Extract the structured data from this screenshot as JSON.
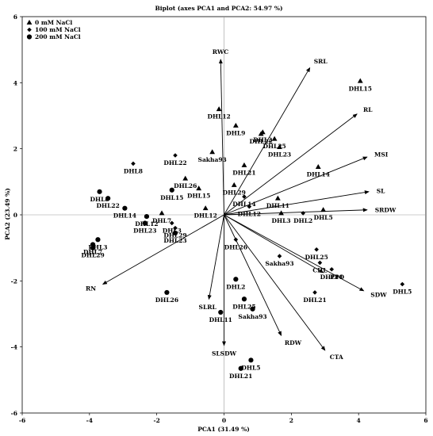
{
  "chart_data": {
    "type": "scatter",
    "title": "Biplot (axes PCA1 and PCA2: 54.97 %)",
    "xlabel": "PCA1 (31.49 %)",
    "ylabel": "PCA2 (23.49 %)",
    "xlim": [
      -6,
      6
    ],
    "ylim": [
      -6,
      6
    ],
    "xticks": [
      "-6",
      "-4",
      "-2",
      "0",
      "2",
      "4",
      "6"
    ],
    "yticks": [
      "6",
      "4",
      "2",
      "0",
      "-2",
      "-4",
      "-6"
    ],
    "legend_position": "top-left",
    "grid": false,
    "series": [
      {
        "name": "0 mM NaCl",
        "marker": "triangle",
        "points": [
          {
            "label": "DHL15",
            "x": 4.05,
            "y": 4.05
          },
          {
            "label": "DHL12",
            "x": -0.15,
            "y": 3.2
          },
          {
            "label": "DHL9",
            "x": 0.35,
            "y": 2.7
          },
          {
            "label": "DHL2",
            "x": 1.15,
            "y": 2.5
          },
          {
            "label": "DHL22",
            "x": 1.1,
            "y": 2.45
          },
          {
            "label": "DHL25",
            "x": 1.5,
            "y": 2.3
          },
          {
            "label": "DHL23",
            "x": 1.65,
            "y": 2.05
          },
          {
            "label": "Sakha93",
            "x": -0.35,
            "y": 1.9
          },
          {
            "label": "DHL21",
            "x": 0.6,
            "y": 1.5
          },
          {
            "label": "DHL14",
            "x": 2.8,
            "y": 1.45
          },
          {
            "label": "DHL26",
            "x": -1.15,
            "y": 1.1
          },
          {
            "label": "DHL29",
            "x": 0.3,
            "y": 0.9
          },
          {
            "label": "DHL15",
            "x": -0.75,
            "y": 0.8
          },
          {
            "label": "DHL11",
            "x": 1.6,
            "y": 0.5
          },
          {
            "label": "DHL7",
            "x": -1.85,
            "y": 0.05
          },
          {
            "label": "DHL3",
            "x": 1.7,
            "y": 0.05
          },
          {
            "label": "DHL5",
            "x": 2.95,
            "y": 0.15
          },
          {
            "label": "DHL12",
            "x": -0.55,
            "y": 0.2
          }
        ]
      },
      {
        "name": "100 mM NaCl",
        "marker": "diamond",
        "points": [
          {
            "label": "DHL8",
            "x": -2.7,
            "y": 1.55
          },
          {
            "label": "DHL22",
            "x": -1.45,
            "y": 1.8
          },
          {
            "label": "DHL14",
            "x": 0.6,
            "y": 0.55
          },
          {
            "label": "DHL12",
            "x": 0.75,
            "y": 0.25
          },
          {
            "label": "DHL3",
            "x": -1.55,
            "y": -0.25
          },
          {
            "label": "DHL29",
            "x": -1.45,
            "y": -0.4
          },
          {
            "label": "DHL2",
            "x": 2.35,
            "y": 0.05
          },
          {
            "label": "DHL26",
            "x": 0.35,
            "y": -0.75
          },
          {
            "label": "Sakha93",
            "x": 1.65,
            "y": -1.25
          },
          {
            "label": "DHL25",
            "x": 2.75,
            "y": -1.05
          },
          {
            "label": "CHL",
            "x": 2.85,
            "y": -1.45
          },
          {
            "label": "DHL11",
            "x": 3.2,
            "y": -1.65
          },
          {
            "label": "DHL21",
            "x": 2.7,
            "y": -2.35
          },
          {
            "label": "DHL5",
            "x": 5.3,
            "y": -2.1
          }
        ]
      },
      {
        "name": "200 mM NaCl",
        "marker": "circle",
        "points": [
          {
            "label": "DHL8",
            "x": -3.7,
            "y": 0.7
          },
          {
            "label": "DHL22",
            "x": -3.45,
            "y": 0.5
          },
          {
            "label": "DHL14",
            "x": -2.95,
            "y": 0.2
          },
          {
            "label": "DHL15",
            "x": -1.55,
            "y": 0.75
          },
          {
            "label": "DHL12",
            "x": -2.3,
            "y": -0.05
          },
          {
            "label": "DHL23",
            "x": -2.35,
            "y": -0.25
          },
          {
            "label": "DHL3",
            "x": -3.75,
            "y": -0.75
          },
          {
            "label": "DHL7",
            "x": -3.9,
            "y": -0.9
          },
          {
            "label": "DHL29",
            "x": -3.9,
            "y": -1.0
          },
          {
            "label": "DHL23",
            "x": -1.45,
            "y": -0.55
          },
          {
            "label": "DHL26",
            "x": -1.7,
            "y": -2.35
          },
          {
            "label": "DHL2",
            "x": 0.35,
            "y": -1.95
          },
          {
            "label": "DHL25",
            "x": 0.6,
            "y": -2.55
          },
          {
            "label": "Sakha93",
            "x": 0.85,
            "y": -2.85
          },
          {
            "label": "DHL11",
            "x": -0.1,
            "y": -2.95
          },
          {
            "label": "DHL5",
            "x": 0.8,
            "y": -4.4
          },
          {
            "label": "DHL21",
            "x": 0.5,
            "y": -4.65
          }
        ]
      }
    ],
    "vectors": [
      {
        "label": "RWC",
        "x": -0.1,
        "y": 4.7
      },
      {
        "label": "SRL",
        "x": 2.55,
        "y": 4.45
      },
      {
        "label": "RL",
        "x": 3.95,
        "y": 3.05
      },
      {
        "label": "MSI",
        "x": 4.25,
        "y": 1.75
      },
      {
        "label": "SL",
        "x": 4.3,
        "y": 0.7
      },
      {
        "label": "SRDW",
        "x": 4.25,
        "y": 0.15
      },
      {
        "label": "PPO",
        "x": 2.95,
        "y": -1.75
      },
      {
        "label": "SDW",
        "x": 4.15,
        "y": -2.3
      },
      {
        "label": "RN",
        "x": -3.6,
        "y": -2.1
      },
      {
        "label": "SLRL",
        "x": -0.45,
        "y": -2.55
      },
      {
        "label": "SLSDW",
        "x": 0.0,
        "y": -3.95
      },
      {
        "label": "RDW",
        "x": 1.7,
        "y": -3.65
      },
      {
        "label": "CTA",
        "x": 3.0,
        "y": -4.1
      }
    ]
  },
  "colors": {
    "ink": "#000000",
    "background": "#ffffff"
  }
}
